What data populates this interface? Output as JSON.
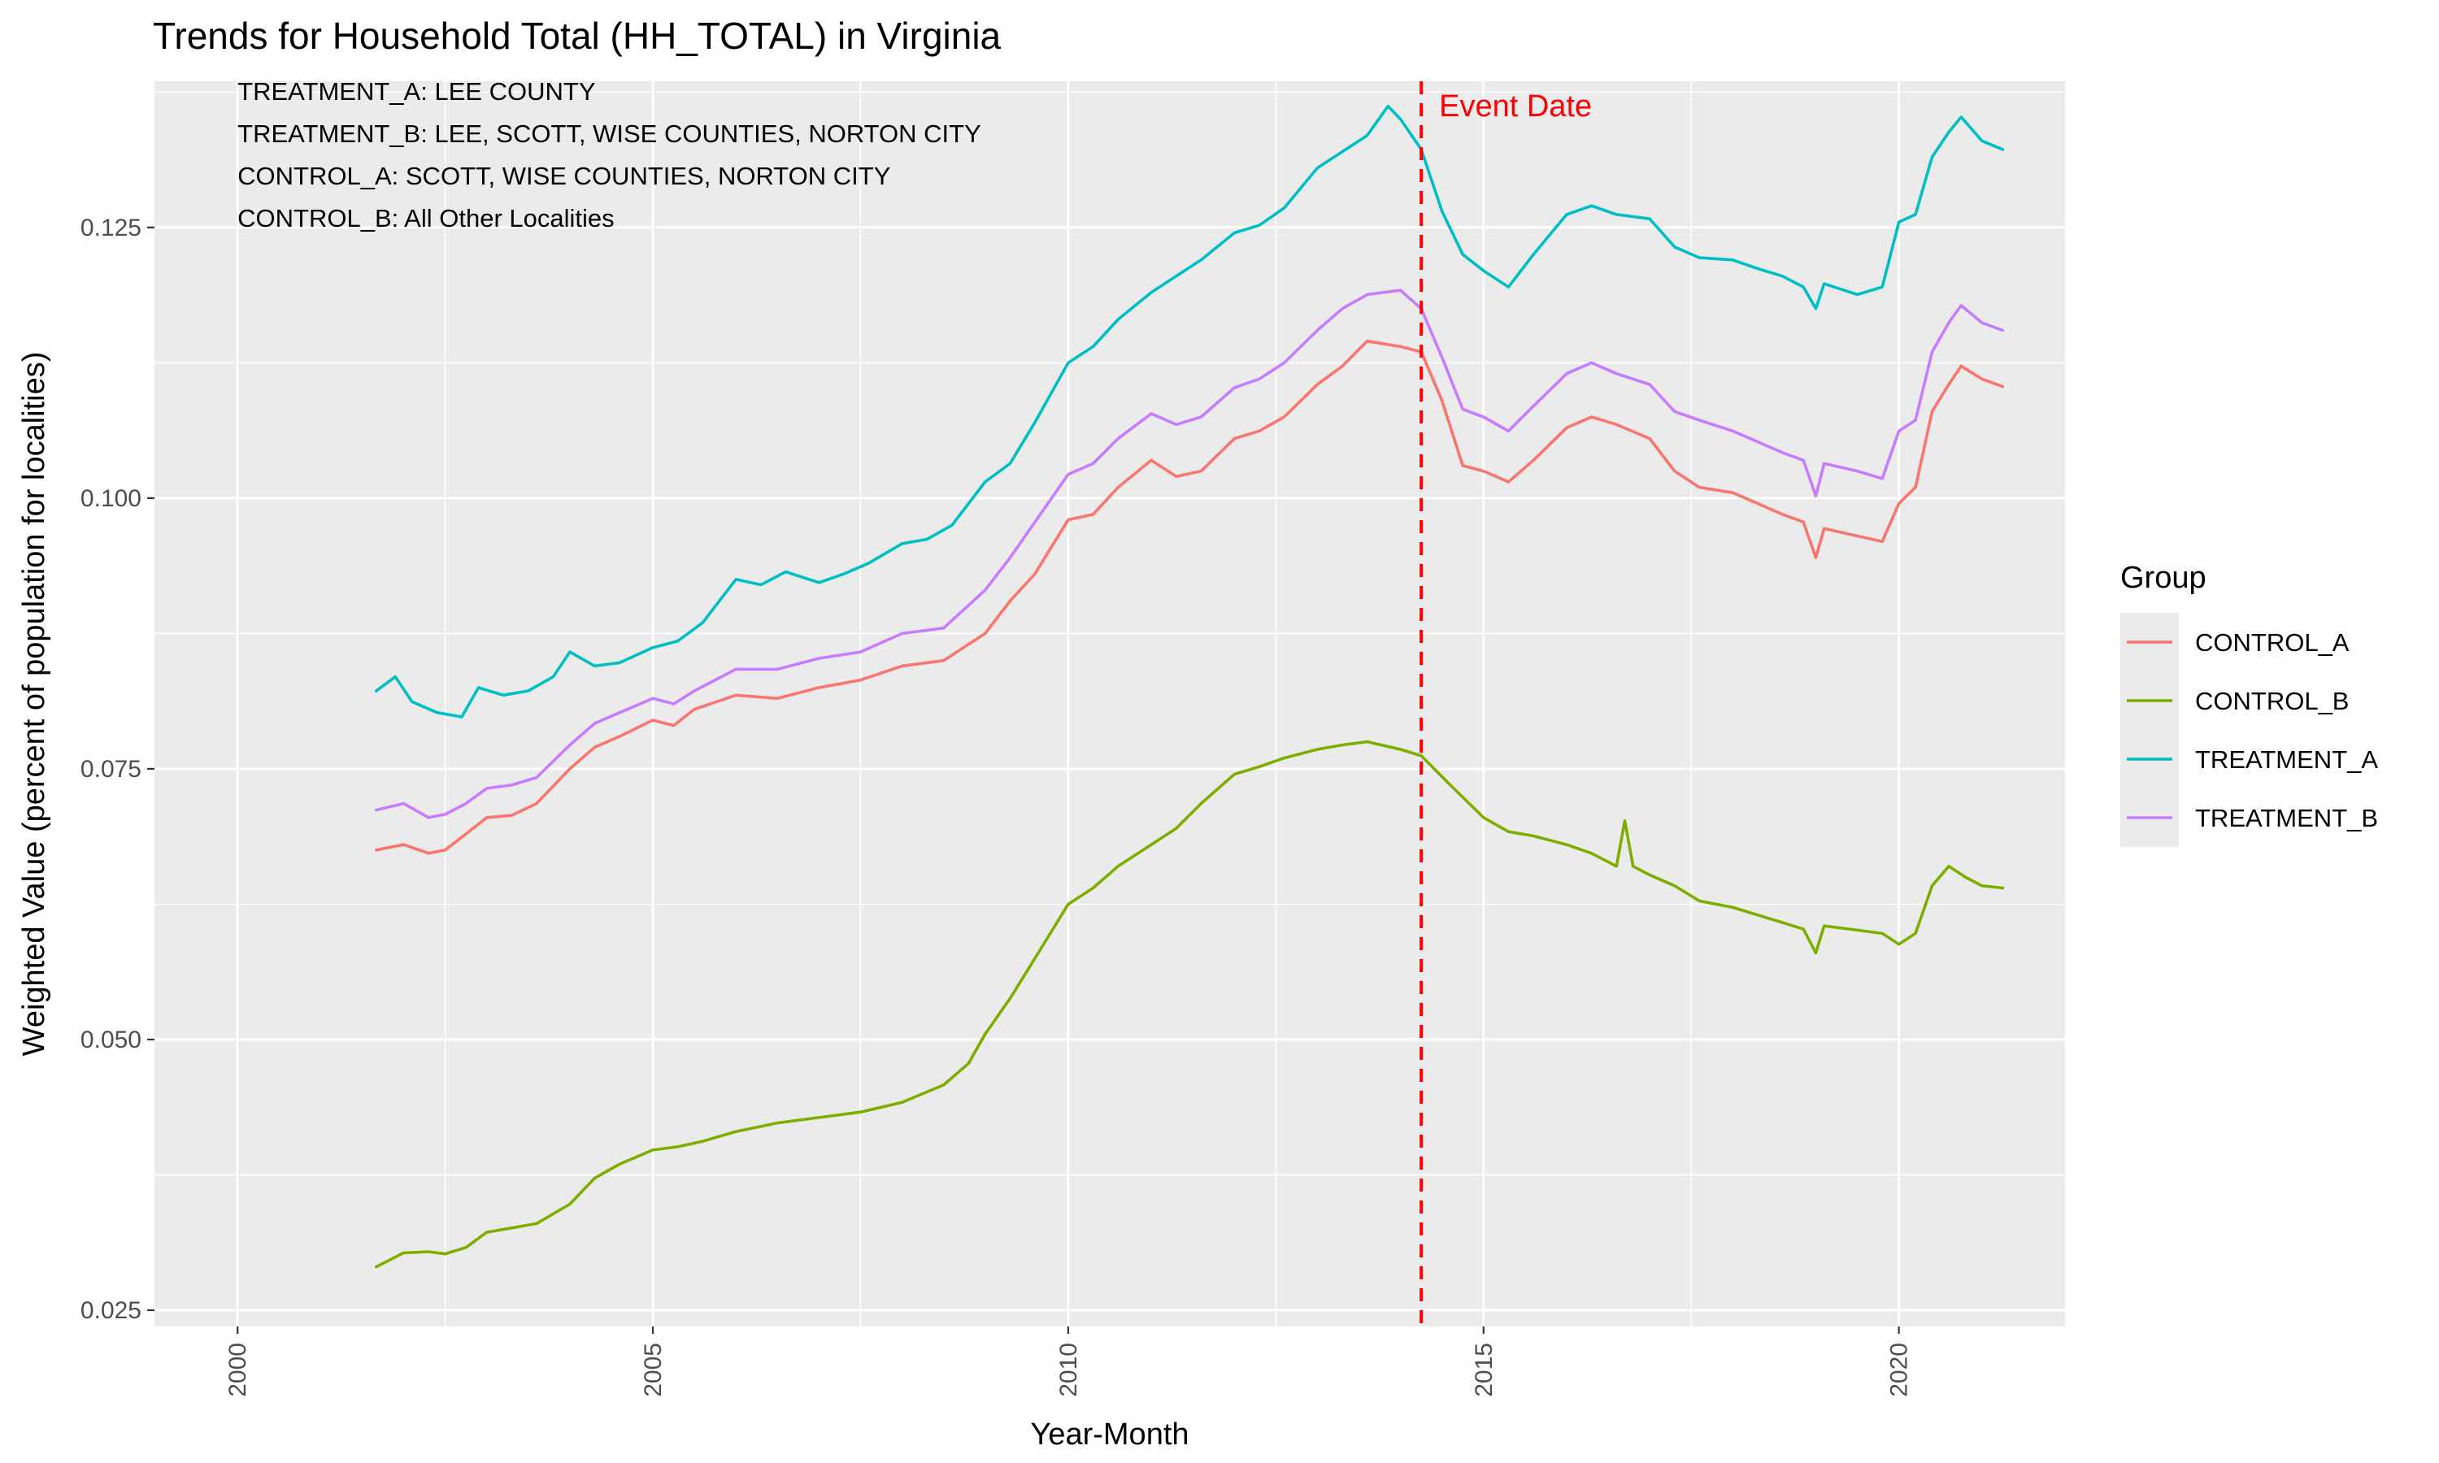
{
  "chart_data": {
    "type": "line",
    "title": "Trends for Household Total (HH_TOTAL) in Virginia",
    "xlabel": "Year-Month",
    "ylabel": "Weighted Value (percent of population for localities)",
    "x_ticks": [
      2000,
      2005,
      2010,
      2015,
      2020
    ],
    "x_tick_labels": [
      "2000",
      "2005",
      "2010",
      "2015",
      "2020"
    ],
    "y_ticks": [
      0.025,
      0.05,
      0.075,
      0.1,
      0.125
    ],
    "y_tick_labels": [
      "0.025",
      "0.050",
      "0.075",
      "0.100",
      "0.125"
    ],
    "xlim": [
      1999,
      2022
    ],
    "ylim": [
      0.0235,
      0.1385
    ],
    "grid": true,
    "legend": {
      "title": "Group",
      "position": "right",
      "entries": [
        "CONTROL_A",
        "CONTROL_B",
        "TREATMENT_A",
        "TREATMENT_B"
      ]
    },
    "annotations": [
      "TREATMENT_A: LEE COUNTY",
      "TREATMENT_B: LEE, SCOTT, WISE COUNTIES, NORTON CITY",
      "CONTROL_A: SCOTT, WISE COUNTIES, NORTON CITY",
      "CONTROL_B: All Other Localities"
    ],
    "event_line": {
      "x": 2014.25,
      "label": "Event Date",
      "color": "#ff0000",
      "style": "dashed"
    },
    "background_color": "#ebebeb",
    "series": [
      {
        "name": "CONTROL_A",
        "color": "#f8766d",
        "points": [
          [
            2001.67,
            0.0675
          ],
          [
            2002.0,
            0.068
          ],
          [
            2002.3,
            0.0672
          ],
          [
            2002.5,
            0.0675
          ],
          [
            2002.75,
            0.069
          ],
          [
            2003.0,
            0.0705
          ],
          [
            2003.3,
            0.0707
          ],
          [
            2003.6,
            0.0718
          ],
          [
            2004.0,
            0.075
          ],
          [
            2004.3,
            0.077
          ],
          [
            2004.6,
            0.078
          ],
          [
            2005.0,
            0.0795
          ],
          [
            2005.25,
            0.079
          ],
          [
            2005.5,
            0.0805
          ],
          [
            2006.0,
            0.0818
          ],
          [
            2006.5,
            0.0815
          ],
          [
            2007.0,
            0.0825
          ],
          [
            2007.5,
            0.0832
          ],
          [
            2008.0,
            0.0845
          ],
          [
            2008.5,
            0.085
          ],
          [
            2009.0,
            0.0875
          ],
          [
            2009.3,
            0.0905
          ],
          [
            2009.6,
            0.093
          ],
          [
            2010.0,
            0.098
          ],
          [
            2010.3,
            0.0985
          ],
          [
            2010.6,
            0.101
          ],
          [
            2011.0,
            0.1035
          ],
          [
            2011.3,
            0.102
          ],
          [
            2011.6,
            0.1025
          ],
          [
            2012.0,
            0.1055
          ],
          [
            2012.3,
            0.1062
          ],
          [
            2012.6,
            0.1075
          ],
          [
            2013.0,
            0.1105
          ],
          [
            2013.3,
            0.1122
          ],
          [
            2013.6,
            0.1145
          ],
          [
            2014.0,
            0.114
          ],
          [
            2014.25,
            0.1135
          ],
          [
            2014.5,
            0.109
          ],
          [
            2014.75,
            0.103
          ],
          [
            2015.0,
            0.1025
          ],
          [
            2015.3,
            0.1015
          ],
          [
            2015.6,
            0.1035
          ],
          [
            2016.0,
            0.1065
          ],
          [
            2016.3,
            0.1075
          ],
          [
            2016.6,
            0.1068
          ],
          [
            2017.0,
            0.1055
          ],
          [
            2017.3,
            0.1025
          ],
          [
            2017.6,
            0.101
          ],
          [
            2018.0,
            0.1005
          ],
          [
            2018.3,
            0.0995
          ],
          [
            2018.6,
            0.0985
          ],
          [
            2018.85,
            0.0978
          ],
          [
            2019.0,
            0.0945
          ],
          [
            2019.1,
            0.0972
          ],
          [
            2019.5,
            0.0965
          ],
          [
            2019.8,
            0.096
          ],
          [
            2020.0,
            0.0995
          ],
          [
            2020.2,
            0.101
          ],
          [
            2020.4,
            0.108
          ],
          [
            2020.6,
            0.1105
          ],
          [
            2020.75,
            0.1122
          ],
          [
            2021.0,
            0.111
          ],
          [
            2021.25,
            0.1103
          ]
        ]
      },
      {
        "name": "CONTROL_B",
        "color": "#7cae00",
        "points": [
          [
            2001.67,
            0.029
          ],
          [
            2002.0,
            0.0303
          ],
          [
            2002.3,
            0.0304
          ],
          [
            2002.5,
            0.0302
          ],
          [
            2002.75,
            0.0308
          ],
          [
            2003.0,
            0.0322
          ],
          [
            2003.3,
            0.0326
          ],
          [
            2003.6,
            0.033
          ],
          [
            2004.0,
            0.0348
          ],
          [
            2004.3,
            0.0372
          ],
          [
            2004.6,
            0.0385
          ],
          [
            2005.0,
            0.0398
          ],
          [
            2005.3,
            0.0401
          ],
          [
            2005.6,
            0.0406
          ],
          [
            2006.0,
            0.0415
          ],
          [
            2006.5,
            0.0423
          ],
          [
            2007.0,
            0.0428
          ],
          [
            2007.5,
            0.0433
          ],
          [
            2008.0,
            0.0442
          ],
          [
            2008.5,
            0.0458
          ],
          [
            2008.8,
            0.0478
          ],
          [
            2009.0,
            0.0505
          ],
          [
            2009.3,
            0.0538
          ],
          [
            2009.6,
            0.0575
          ],
          [
            2010.0,
            0.0625
          ],
          [
            2010.3,
            0.064
          ],
          [
            2010.6,
            0.066
          ],
          [
            2011.0,
            0.068
          ],
          [
            2011.3,
            0.0695
          ],
          [
            2011.6,
            0.0718
          ],
          [
            2012.0,
            0.0745
          ],
          [
            2012.3,
            0.0752
          ],
          [
            2012.6,
            0.076
          ],
          [
            2013.0,
            0.0768
          ],
          [
            2013.3,
            0.0772
          ],
          [
            2013.6,
            0.0775
          ],
          [
            2014.0,
            0.0768
          ],
          [
            2014.25,
            0.0762
          ],
          [
            2014.6,
            0.0735
          ],
          [
            2015.0,
            0.0705
          ],
          [
            2015.3,
            0.0692
          ],
          [
            2015.6,
            0.0688
          ],
          [
            2016.0,
            0.068
          ],
          [
            2016.3,
            0.0672
          ],
          [
            2016.6,
            0.066
          ],
          [
            2016.7,
            0.0702
          ],
          [
            2016.8,
            0.066
          ],
          [
            2017.0,
            0.0652
          ],
          [
            2017.3,
            0.0642
          ],
          [
            2017.6,
            0.0628
          ],
          [
            2018.0,
            0.0622
          ],
          [
            2018.3,
            0.0615
          ],
          [
            2018.6,
            0.0608
          ],
          [
            2018.85,
            0.0602
          ],
          [
            2019.0,
            0.058
          ],
          [
            2019.1,
            0.0605
          ],
          [
            2019.5,
            0.0601
          ],
          [
            2019.8,
            0.0598
          ],
          [
            2020.0,
            0.0588
          ],
          [
            2020.2,
            0.0598
          ],
          [
            2020.4,
            0.0642
          ],
          [
            2020.6,
            0.066
          ],
          [
            2020.8,
            0.065
          ],
          [
            2021.0,
            0.0642
          ],
          [
            2021.25,
            0.064
          ]
        ]
      },
      {
        "name": "TREATMENT_A",
        "color": "#00bfc4",
        "points": [
          [
            2001.67,
            0.0822
          ],
          [
            2001.9,
            0.0835
          ],
          [
            2002.1,
            0.0812
          ],
          [
            2002.4,
            0.0802
          ],
          [
            2002.7,
            0.0798
          ],
          [
            2002.9,
            0.0825
          ],
          [
            2003.2,
            0.0818
          ],
          [
            2003.5,
            0.0822
          ],
          [
            2003.8,
            0.0835
          ],
          [
            2004.0,
            0.0858
          ],
          [
            2004.3,
            0.0845
          ],
          [
            2004.6,
            0.0848
          ],
          [
            2005.0,
            0.0862
          ],
          [
            2005.3,
            0.0868
          ],
          [
            2005.6,
            0.0885
          ],
          [
            2006.0,
            0.0925
          ],
          [
            2006.3,
            0.092
          ],
          [
            2006.6,
            0.0932
          ],
          [
            2007.0,
            0.0922
          ],
          [
            2007.3,
            0.093
          ],
          [
            2007.6,
            0.094
          ],
          [
            2008.0,
            0.0958
          ],
          [
            2008.3,
            0.0962
          ],
          [
            2008.6,
            0.0975
          ],
          [
            2009.0,
            0.1015
          ],
          [
            2009.3,
            0.1032
          ],
          [
            2009.6,
            0.107
          ],
          [
            2010.0,
            0.1125
          ],
          [
            2010.3,
            0.114
          ],
          [
            2010.6,
            0.1165
          ],
          [
            2011.0,
            0.119
          ],
          [
            2011.3,
            0.1205
          ],
          [
            2011.6,
            0.122
          ],
          [
            2012.0,
            0.1245
          ],
          [
            2012.3,
            0.1252
          ],
          [
            2012.6,
            0.1268
          ],
          [
            2013.0,
            0.1305
          ],
          [
            2013.3,
            0.132
          ],
          [
            2013.6,
            0.1335
          ],
          [
            2013.85,
            0.1362
          ],
          [
            2014.0,
            0.135
          ],
          [
            2014.25,
            0.1322
          ],
          [
            2014.5,
            0.1265
          ],
          [
            2014.75,
            0.1225
          ],
          [
            2015.0,
            0.121
          ],
          [
            2015.3,
            0.1195
          ],
          [
            2015.6,
            0.1225
          ],
          [
            2016.0,
            0.1262
          ],
          [
            2016.3,
            0.127
          ],
          [
            2016.6,
            0.1262
          ],
          [
            2017.0,
            0.1258
          ],
          [
            2017.3,
            0.1232
          ],
          [
            2017.6,
            0.1222
          ],
          [
            2018.0,
            0.122
          ],
          [
            2018.3,
            0.1212
          ],
          [
            2018.6,
            0.1205
          ],
          [
            2018.85,
            0.1195
          ],
          [
            2019.0,
            0.1175
          ],
          [
            2019.1,
            0.1198
          ],
          [
            2019.5,
            0.1188
          ],
          [
            2019.8,
            0.1195
          ],
          [
            2020.0,
            0.1255
          ],
          [
            2020.2,
            0.1262
          ],
          [
            2020.4,
            0.1315
          ],
          [
            2020.6,
            0.1338
          ],
          [
            2020.75,
            0.1352
          ],
          [
            2021.0,
            0.133
          ],
          [
            2021.25,
            0.1322
          ]
        ]
      },
      {
        "name": "TREATMENT_B",
        "color": "#c77cff",
        "points": [
          [
            2001.67,
            0.0712
          ],
          [
            2002.0,
            0.0718
          ],
          [
            2002.3,
            0.0705
          ],
          [
            2002.5,
            0.0708
          ],
          [
            2002.75,
            0.0718
          ],
          [
            2003.0,
            0.0732
          ],
          [
            2003.3,
            0.0735
          ],
          [
            2003.6,
            0.0742
          ],
          [
            2004.0,
            0.0772
          ],
          [
            2004.3,
            0.0792
          ],
          [
            2004.6,
            0.0802
          ],
          [
            2005.0,
            0.0815
          ],
          [
            2005.25,
            0.081
          ],
          [
            2005.5,
            0.0822
          ],
          [
            2006.0,
            0.0842
          ],
          [
            2006.5,
            0.0842
          ],
          [
            2007.0,
            0.0852
          ],
          [
            2007.5,
            0.0858
          ],
          [
            2008.0,
            0.0875
          ],
          [
            2008.5,
            0.088
          ],
          [
            2009.0,
            0.0915
          ],
          [
            2009.3,
            0.0945
          ],
          [
            2009.6,
            0.0978
          ],
          [
            2010.0,
            0.1022
          ],
          [
            2010.3,
            0.1032
          ],
          [
            2010.6,
            0.1055
          ],
          [
            2011.0,
            0.1078
          ],
          [
            2011.3,
            0.1068
          ],
          [
            2011.6,
            0.1075
          ],
          [
            2012.0,
            0.1102
          ],
          [
            2012.3,
            0.111
          ],
          [
            2012.6,
            0.1125
          ],
          [
            2013.0,
            0.1155
          ],
          [
            2013.3,
            0.1175
          ],
          [
            2013.6,
            0.1188
          ],
          [
            2014.0,
            0.1192
          ],
          [
            2014.25,
            0.1175
          ],
          [
            2014.5,
            0.113
          ],
          [
            2014.75,
            0.1082
          ],
          [
            2015.0,
            0.1075
          ],
          [
            2015.3,
            0.1062
          ],
          [
            2015.6,
            0.1085
          ],
          [
            2016.0,
            0.1115
          ],
          [
            2016.3,
            0.1125
          ],
          [
            2016.6,
            0.1115
          ],
          [
            2017.0,
            0.1105
          ],
          [
            2017.3,
            0.108
          ],
          [
            2017.6,
            0.1072
          ],
          [
            2018.0,
            0.1062
          ],
          [
            2018.3,
            0.1052
          ],
          [
            2018.6,
            0.1042
          ],
          [
            2018.85,
            0.1035
          ],
          [
            2019.0,
            0.1002
          ],
          [
            2019.1,
            0.1032
          ],
          [
            2019.5,
            0.1025
          ],
          [
            2019.8,
            0.1018
          ],
          [
            2020.0,
            0.1062
          ],
          [
            2020.2,
            0.1072
          ],
          [
            2020.4,
            0.1135
          ],
          [
            2020.6,
            0.1162
          ],
          [
            2020.75,
            0.1178
          ],
          [
            2021.0,
            0.1162
          ],
          [
            2021.25,
            0.1155
          ]
        ]
      }
    ]
  }
}
